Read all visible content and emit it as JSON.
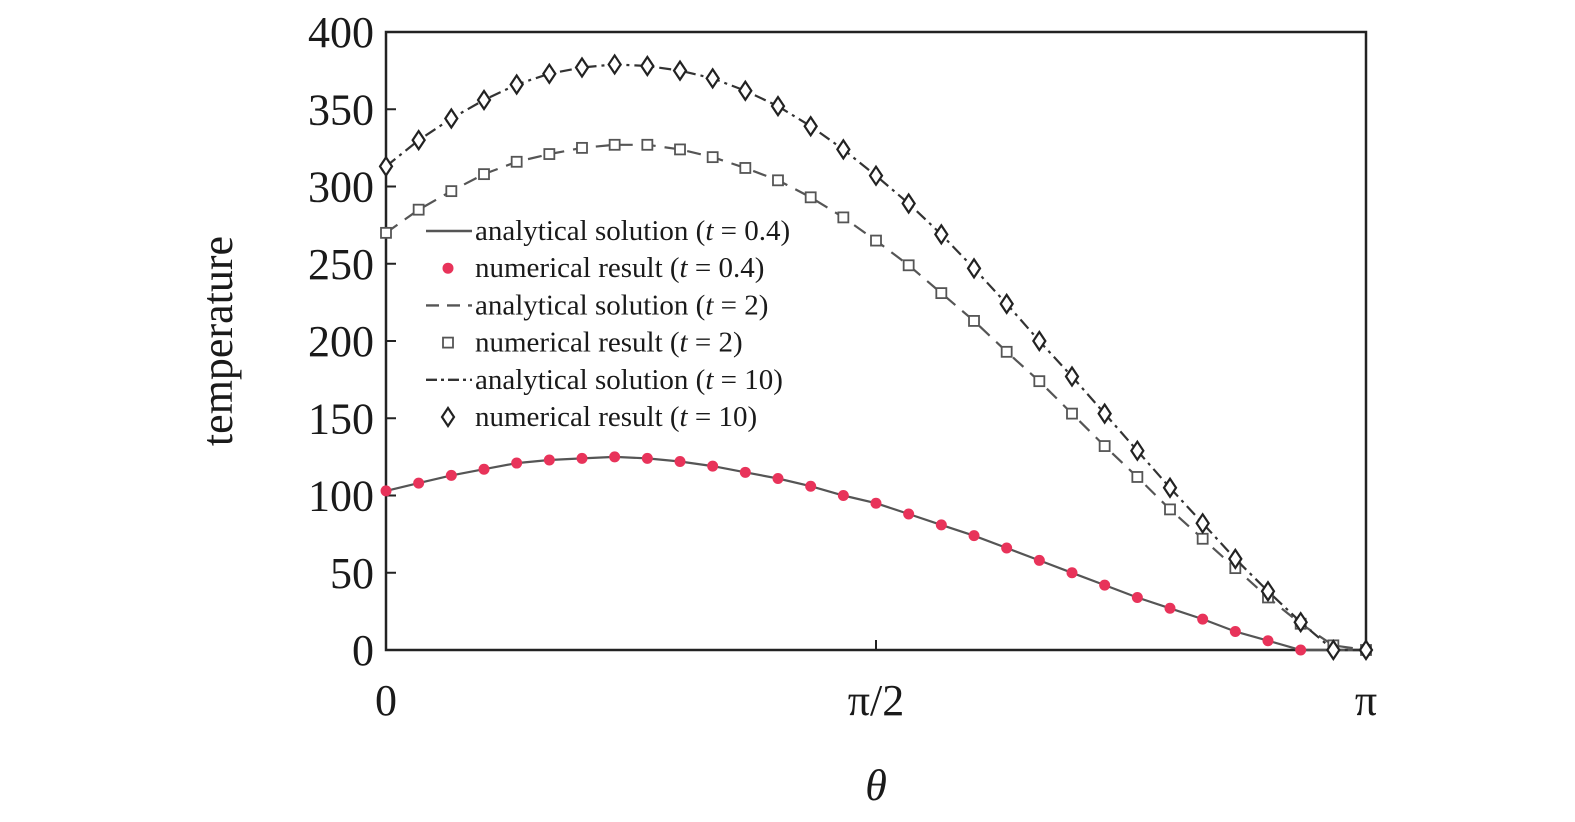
{
  "chart_data": {
    "type": "line",
    "xlabel": "θ",
    "ylabel": "temperature",
    "xlim": [
      0,
      3.14159
    ],
    "ylim": [
      0,
      400
    ],
    "x_ticks": [
      {
        "value": 0,
        "label": "0"
      },
      {
        "value": 1.5708,
        "label": "π/2"
      },
      {
        "value": 3.14159,
        "label": "π"
      }
    ],
    "y_ticks": [
      0,
      50,
      100,
      150,
      200,
      250,
      300,
      350,
      400
    ],
    "y_tick_labels": [
      "0",
      "50",
      "100",
      "150",
      "200",
      "250",
      "300",
      "350",
      "400"
    ],
    "grid": false,
    "legend_position": "center-left",
    "legend": [
      {
        "text": "analytical solution (t = 0.4)",
        "prefix": "analytical solution (",
        "var": "t",
        "suffix": " = 0.4)",
        "kind": "line",
        "dash": "solid",
        "color": "#555555",
        "series": 0
      },
      {
        "text": "numerical result (t = 0.4)",
        "prefix": "numerical result (",
        "var": "t",
        "suffix": " = 0.4)",
        "kind": "marker",
        "marker": "dot",
        "color": "#e8335a",
        "series": 0
      },
      {
        "text": "analytical solution (t = 2)",
        "prefix": "analytical solution (",
        "var": "t",
        "suffix": " = 2)",
        "kind": "line",
        "dash": "dashed",
        "color": "#555555",
        "series": 1
      },
      {
        "text": "numerical result (t = 2)",
        "prefix": "numerical result (",
        "var": "t",
        "suffix": " = 2)",
        "kind": "marker",
        "marker": "square",
        "color": "#555555",
        "series": 1
      },
      {
        "text": "analytical solution (t = 10)",
        "prefix": "analytical solution (",
        "var": "t",
        "suffix": " = 10)",
        "kind": "line",
        "dash": "dashdot",
        "color": "#333333",
        "series": 2
      },
      {
        "text": "numerical result (t = 10)",
        "prefix": "numerical result (",
        "var": "t",
        "suffix": " = 10)",
        "kind": "marker",
        "marker": "diamond",
        "color": "#222222",
        "series": 2
      }
    ],
    "series": [
      {
        "t": 0.4,
        "line_color": "#555555",
        "marker_color": "#e8335a",
        "x": [
          0,
          0.1047,
          0.2094,
          0.3142,
          0.4189,
          0.5236,
          0.6283,
          0.733,
          0.8378,
          0.9425,
          1.0472,
          1.1519,
          1.2566,
          1.3614,
          1.4661,
          1.5708,
          1.6755,
          1.7802,
          1.885,
          1.9897,
          2.0944,
          2.1991,
          2.3038,
          2.4086,
          2.5133,
          2.618,
          2.7227,
          2.8274,
          2.9322,
          3.0369,
          3.1416
        ],
        "values": [
          103,
          108,
          113,
          117,
          121,
          123,
          124,
          125,
          124,
          122,
          119,
          115,
          111,
          106,
          100,
          95,
          88,
          81,
          74,
          66,
          58,
          50,
          42,
          34,
          27,
          20,
          12,
          6,
          0,
          0,
          0
        ]
      },
      {
        "t": 2,
        "line_color": "#555555",
        "marker_color": "#555555",
        "x": [
          0,
          0.1047,
          0.2094,
          0.3142,
          0.4189,
          0.5236,
          0.6283,
          0.733,
          0.8378,
          0.9425,
          1.0472,
          1.1519,
          1.2566,
          1.3614,
          1.4661,
          1.5708,
          1.6755,
          1.7802,
          1.885,
          1.9897,
          2.0944,
          2.1991,
          2.3038,
          2.4086,
          2.5133,
          2.618,
          2.7227,
          2.8274,
          2.9322,
          3.0369,
          3.1416
        ],
        "values": [
          270,
          285,
          297,
          308,
          316,
          321,
          325,
          327,
          327,
          324,
          319,
          312,
          304,
          293,
          280,
          265,
          249,
          231,
          213,
          193,
          174,
          153,
          132,
          112,
          91,
          72,
          53,
          34,
          17,
          3,
          0
        ]
      },
      {
        "t": 10,
        "line_color": "#333333",
        "marker_color": "#222222",
        "x": [
          0,
          0.1047,
          0.2094,
          0.3142,
          0.4189,
          0.5236,
          0.6283,
          0.733,
          0.8378,
          0.9425,
          1.0472,
          1.1519,
          1.2566,
          1.3614,
          1.4661,
          1.5708,
          1.6755,
          1.7802,
          1.885,
          1.9897,
          2.0944,
          2.1991,
          2.3038,
          2.4086,
          2.5133,
          2.618,
          2.7227,
          2.8274,
          2.9322,
          3.0369,
          3.1416
        ],
        "values": [
          313,
          330,
          344,
          356,
          366,
          373,
          377,
          379,
          378,
          375,
          370,
          362,
          352,
          339,
          324,
          307,
          289,
          269,
          247,
          224,
          200,
          177,
          153,
          129,
          105,
          82,
          59,
          38,
          18,
          0,
          0
        ]
      }
    ]
  }
}
